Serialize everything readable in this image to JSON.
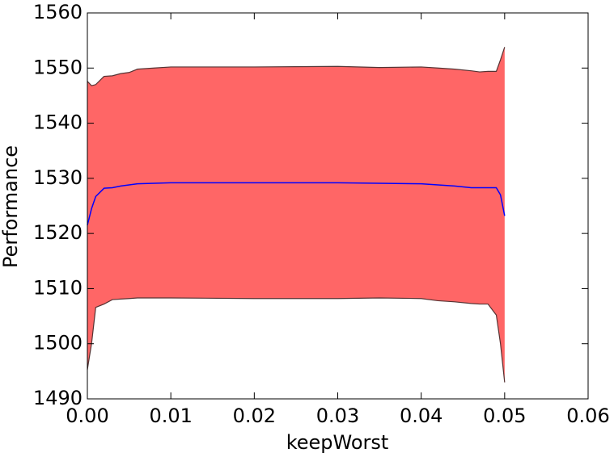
{
  "chart_data": {
    "type": "line_band",
    "xlabel": "keepWorst",
    "ylabel": "Performance",
    "x": [
      0,
      0.0005,
      0.001,
      0.002,
      0.003,
      0.004,
      0.005,
      0.006,
      0.008,
      0.01,
      0.02,
      0.03,
      0.035,
      0.04,
      0.042,
      0.044,
      0.046,
      0.047,
      0.048,
      0.049,
      0.0495,
      0.05
    ],
    "values": [
      1521.5,
      1524.5,
      1526.7,
      1528.2,
      1528.3,
      1528.6,
      1528.8,
      1529,
      1529.1,
      1529.2,
      1529.2,
      1529.2,
      1529.1,
      1529,
      1528.8,
      1528.6,
      1528.3,
      1528.3,
      1528.3,
      1528.3,
      1527,
      1523.2
    ],
    "color": "#0000ff",
    "band": {
      "color": "#ff6666",
      "edge_color": "#553333",
      "upper": [
        1547.6,
        1546.8,
        1547,
        1548.5,
        1548.6,
        1549,
        1549.2,
        1549.8,
        1550,
        1550.2,
        1550.2,
        1550.3,
        1550.1,
        1550.2,
        1550,
        1549.8,
        1549.5,
        1549.3,
        1549.4,
        1549.4,
        1551.5,
        1553.8
      ],
      "lower": [
        1495.3,
        1500,
        1506.6,
        1507.2,
        1508,
        1508.1,
        1508.2,
        1508.3,
        1508.3,
        1508.3,
        1508.2,
        1508.2,
        1508.3,
        1508.2,
        1507.8,
        1507.6,
        1507.3,
        1507.2,
        1507.2,
        1505.2,
        1500,
        1493
      ]
    },
    "xlim": [
      0,
      0.06
    ],
    "xticks": [
      {
        "value": 0,
        "label": "0.00"
      },
      {
        "value": 0.01,
        "label": "0.01"
      },
      {
        "value": 0.02,
        "label": "0.02"
      },
      {
        "value": 0.03,
        "label": "0.03"
      },
      {
        "value": 0.04,
        "label": "0.04"
      },
      {
        "value": 0.05,
        "label": "0.05"
      },
      {
        "value": 0.06,
        "label": "0.06"
      }
    ],
    "ylim": [
      1490,
      1560
    ],
    "yticks": [
      1490,
      1500,
      1510,
      1520,
      1530,
      1540,
      1550,
      1560
    ],
    "grid": false
  }
}
